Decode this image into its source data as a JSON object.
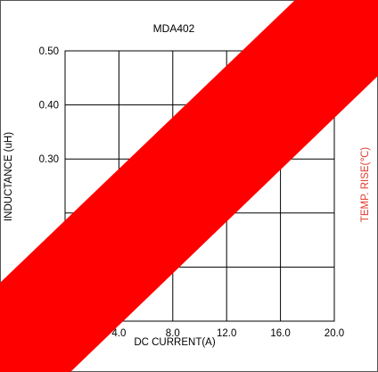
{
  "chart_data": {
    "type": "line",
    "title": "MDA402",
    "xlabel": "DC CURRENT(A)",
    "ylabel": "INDUCTANCE (uH)",
    "y2label": "TEMP. RISE(℃)",
    "xlim": [
      0,
      20
    ],
    "ylim": [
      0,
      0.5
    ],
    "x_ticks": [
      "4.0",
      "8.0",
      "12.0",
      "16.0",
      "20.0"
    ],
    "y_ticks": [
      "0.30",
      "0.40",
      "0.50"
    ],
    "grid": true,
    "series": []
  },
  "overlay": {
    "color": "#ff0000"
  },
  "colors": {
    "temp_axis": "#e23a2c",
    "grid": "#000000"
  }
}
